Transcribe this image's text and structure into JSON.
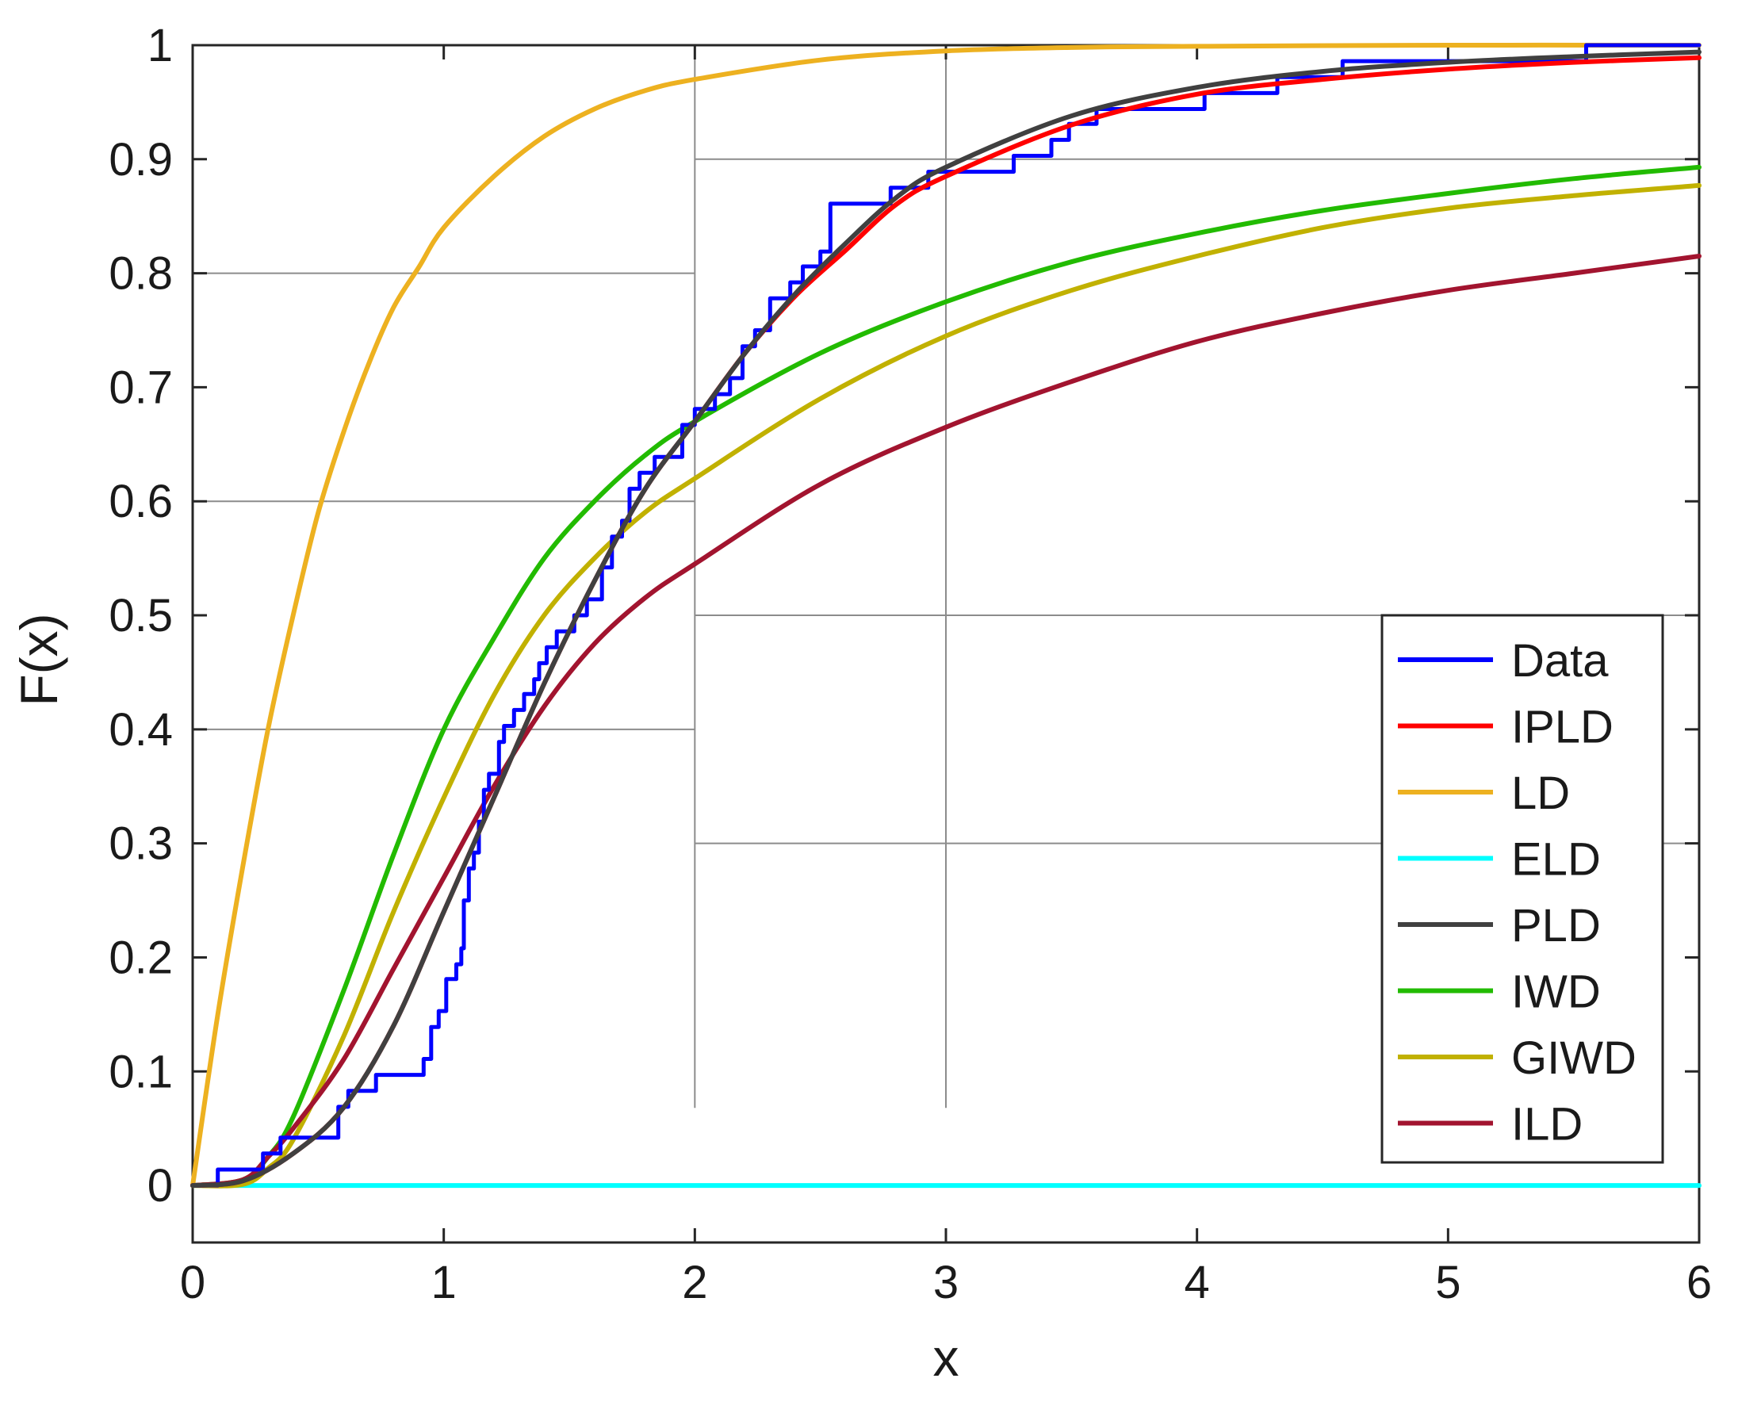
{
  "chart_data": {
    "type": "line",
    "title": "",
    "xlabel": "x",
    "ylabel": "F(x)",
    "xlim": [
      0,
      6
    ],
    "ylim": [
      -0.05,
      1
    ],
    "xticks": [
      "0",
      "1",
      "2",
      "3",
      "4",
      "5",
      "6"
    ],
    "yticks": [
      "0",
      "0.1",
      "0.2",
      "0.3",
      "0.4",
      "0.5",
      "0.6",
      "0.7",
      "0.8",
      "0.9",
      "1"
    ],
    "grid": false,
    "legend_position": "bottom-right",
    "series": [
      {
        "name": "Data",
        "color": "#0000ff",
        "style": "step",
        "x": [
          0,
          0.1,
          0.28,
          0.35,
          0.45,
          0.58,
          0.62,
          0.73,
          0.92,
          0.95,
          0.98,
          1.01,
          1.05,
          1.07,
          1.08,
          1.1,
          1.12,
          1.14,
          1.16,
          1.18,
          1.22,
          1.24,
          1.28,
          1.32,
          1.36,
          1.38,
          1.41,
          1.45,
          1.52,
          1.57,
          1.63,
          1.67,
          1.71,
          1.74,
          1.78,
          1.84,
          1.95,
          2.0,
          2.08,
          2.14,
          2.19,
          2.24,
          2.3,
          2.38,
          2.43,
          2.5,
          2.54,
          2.78,
          2.93,
          3.27,
          3.42,
          3.49,
          3.6,
          4.03,
          4.32,
          4.58,
          5.0,
          5.55
        ],
        "y": [
          0,
          0.014,
          0.028,
          0.042,
          0.042,
          0.069,
          0.083,
          0.097,
          0.111,
          0.139,
          0.153,
          0.181,
          0.194,
          0.208,
          0.25,
          0.278,
          0.292,
          0.319,
          0.347,
          0.361,
          0.389,
          0.403,
          0.417,
          0.431,
          0.444,
          0.458,
          0.472,
          0.486,
          0.5,
          0.514,
          0.542,
          0.569,
          0.583,
          0.611,
          0.625,
          0.639,
          0.667,
          0.681,
          0.694,
          0.708,
          0.736,
          0.75,
          0.778,
          0.792,
          0.806,
          0.819,
          0.861,
          0.875,
          0.889,
          0.903,
          0.917,
          0.931,
          0.944,
          0.958,
          0.972,
          0.986,
          0.986,
          1.0
        ]
      },
      {
        "name": "IPLD",
        "color": "#ff0000",
        "x": [
          0,
          0.2,
          0.4,
          0.6,
          0.8,
          1.0,
          1.2,
          1.4,
          1.6,
          1.8,
          2.0,
          2.2,
          2.4,
          2.6,
          2.8,
          3.0,
          3.5,
          4.0,
          4.5,
          5.0,
          5.5,
          6.0
        ],
        "y": [
          0,
          0.004,
          0.028,
          0.068,
          0.14,
          0.24,
          0.34,
          0.44,
          0.53,
          0.61,
          0.67,
          0.73,
          0.78,
          0.82,
          0.86,
          0.885,
          0.93,
          0.957,
          0.97,
          0.979,
          0.985,
          0.989
        ]
      },
      {
        "name": "LD",
        "color": "#edb120",
        "x": [
          0,
          0.1,
          0.2,
          0.3,
          0.4,
          0.5,
          0.6,
          0.7,
          0.8,
          0.9,
          1.0,
          1.2,
          1.4,
          1.6,
          1.8,
          2.0,
          2.5,
          3.0,
          3.5,
          4.0,
          5.0,
          6.0
        ],
        "y": [
          0,
          0.15,
          0.28,
          0.4,
          0.5,
          0.59,
          0.66,
          0.72,
          0.77,
          0.805,
          0.84,
          0.885,
          0.92,
          0.944,
          0.96,
          0.97,
          0.987,
          0.995,
          0.998,
          0.999,
          1.0,
          1.0
        ]
      },
      {
        "name": "ELD",
        "color": "#00ffff",
        "x": [
          0,
          6
        ],
        "y": [
          0,
          0
        ]
      },
      {
        "name": "PLD",
        "color": "#404040",
        "x": [
          0,
          0.2,
          0.4,
          0.6,
          0.8,
          1.0,
          1.2,
          1.4,
          1.6,
          1.8,
          2.0,
          2.2,
          2.4,
          2.6,
          2.8,
          3.0,
          3.5,
          4.0,
          4.5,
          5.0,
          5.5,
          6.0
        ],
        "y": [
          0,
          0.004,
          0.028,
          0.068,
          0.14,
          0.24,
          0.34,
          0.44,
          0.53,
          0.61,
          0.67,
          0.73,
          0.782,
          0.826,
          0.866,
          0.893,
          0.938,
          0.963,
          0.977,
          0.985,
          0.99,
          0.994
        ]
      },
      {
        "name": "IWD",
        "color": "#22bb00",
        "x": [
          0,
          0.2,
          0.3,
          0.4,
          0.6,
          0.8,
          1.0,
          1.2,
          1.4,
          1.6,
          1.8,
          2.0,
          2.5,
          3.0,
          3.5,
          4.0,
          4.5,
          5.0,
          5.5,
          6.0
        ],
        "y": [
          0,
          0.005,
          0.025,
          0.06,
          0.17,
          0.29,
          0.4,
          0.48,
          0.55,
          0.6,
          0.64,
          0.67,
          0.73,
          0.775,
          0.81,
          0.835,
          0.855,
          0.87,
          0.883,
          0.893
        ]
      },
      {
        "name": "GIWD",
        "color": "#c1b100",
        "x": [
          0,
          0.2,
          0.3,
          0.4,
          0.6,
          0.8,
          1.0,
          1.2,
          1.4,
          1.6,
          1.8,
          2.0,
          2.5,
          3.0,
          3.5,
          4.0,
          4.5,
          5.0,
          5.5,
          6.0
        ],
        "y": [
          0,
          0.001,
          0.015,
          0.04,
          0.13,
          0.24,
          0.34,
          0.43,
          0.5,
          0.55,
          0.59,
          0.62,
          0.69,
          0.745,
          0.785,
          0.815,
          0.84,
          0.857,
          0.868,
          0.877
        ]
      },
      {
        "name": "ILD",
        "color": "#a2142f",
        "x": [
          0,
          0.2,
          0.3,
          0.4,
          0.6,
          0.8,
          1.0,
          1.2,
          1.4,
          1.6,
          1.8,
          2.0,
          2.5,
          3.0,
          3.5,
          4.0,
          4.5,
          5.0,
          5.5,
          6.0
        ],
        "y": [
          0,
          0.005,
          0.025,
          0.05,
          0.11,
          0.19,
          0.27,
          0.35,
          0.42,
          0.475,
          0.515,
          0.545,
          0.615,
          0.665,
          0.705,
          0.74,
          0.765,
          0.785,
          0.8,
          0.815
        ]
      }
    ]
  }
}
